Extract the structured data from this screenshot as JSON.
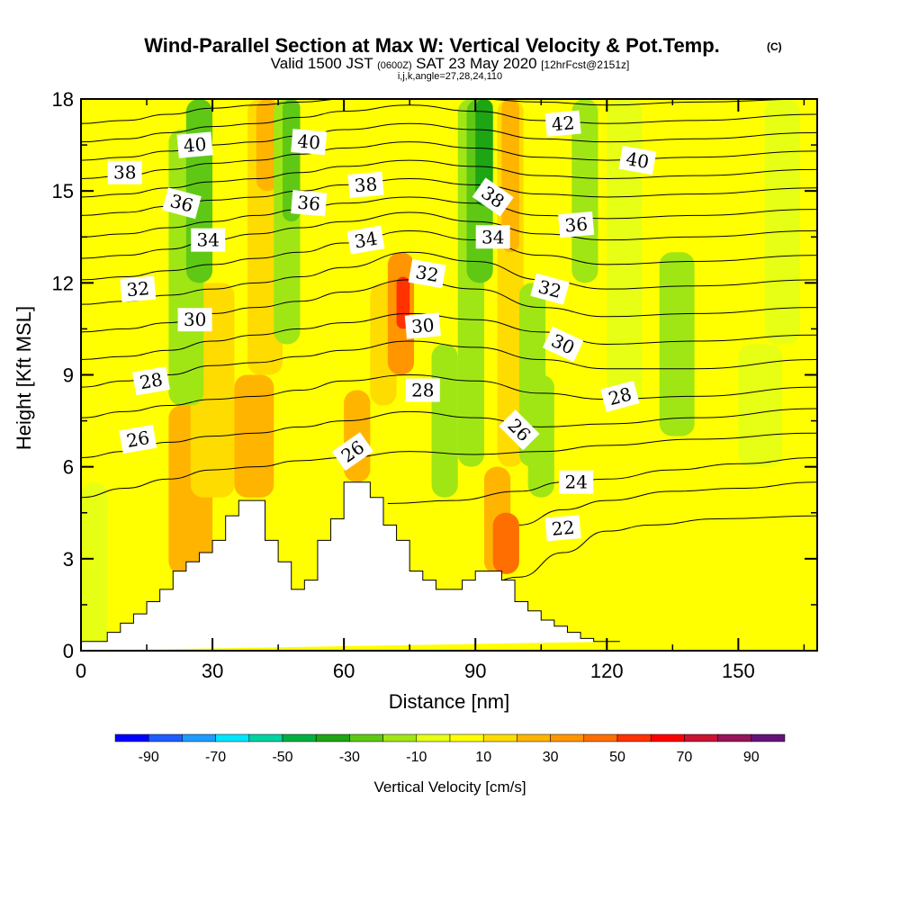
{
  "chart_data": {
    "type": "heatmap",
    "title": "Wind-Parallel Section at Max W: Vertical Velocity & Pot.Temp.",
    "title_mark": "(C)",
    "subtitle_parts": [
      "Valid 1500 JST",
      "(0600Z)",
      "SAT 23 May 2020",
      "[12hrFcst@2151z]"
    ],
    "subtitle2": "i,j,k,angle=27,28,24,110",
    "xlabel": "Distance [nm]",
    "ylabel": "Height [Kft MSL]",
    "xlim": [
      0,
      168
    ],
    "ylim": [
      0,
      18
    ],
    "x_ticks": [
      0,
      30,
      60,
      90,
      120,
      150
    ],
    "y_ticks": [
      0,
      3,
      6,
      9,
      12,
      15,
      18
    ],
    "colorbar": {
      "label": "Vertical Velocity [cm/s]",
      "tick_labels": [
        "-90",
        "-70",
        "-50",
        "-30",
        "-10",
        "10",
        "30",
        "50",
        "70",
        "90"
      ],
      "colors": [
        "#0000ff",
        "#1e5cff",
        "#1e9bff",
        "#00e6ff",
        "#00d2a0",
        "#00b040",
        "#1ea514",
        "#5fc814",
        "#a0e614",
        "#e6ff14",
        "#ffff00",
        "#ffdc00",
        "#ffb400",
        "#ff9600",
        "#ff6e00",
        "#ff3200",
        "#ff0000",
        "#c81432",
        "#96145a",
        "#641478"
      ]
    },
    "terrain": {
      "x": [
        0,
        6,
        6,
        9,
        9,
        12,
        12,
        15,
        15,
        18,
        18,
        21,
        21,
        24,
        24,
        27,
        27,
        30,
        30,
        33,
        33,
        36,
        36,
        42,
        42,
        45,
        45,
        48,
        48,
        51,
        51,
        54,
        54,
        57,
        57,
        60,
        60,
        66,
        66,
        69,
        69,
        72,
        72,
        75,
        75,
        78,
        78,
        81,
        81,
        87,
        87,
        90,
        90,
        96,
        96,
        99,
        99,
        102,
        102,
        105,
        105,
        108,
        108,
        111,
        111,
        114,
        114,
        117,
        117,
        120,
        120,
        123,
        123,
        168
      ],
      "y": [
        0.3,
        0.3,
        0.6,
        0.6,
        0.9,
        0.9,
        1.2,
        1.2,
        1.6,
        1.6,
        2.0,
        2.0,
        2.6,
        2.6,
        2.9,
        2.9,
        3.2,
        3.2,
        3.6,
        3.6,
        4.4,
        4.4,
        4.9,
        4.9,
        3.6,
        3.6,
        2.9,
        2.9,
        2.0,
        2.0,
        2.3,
        2.3,
        3.6,
        3.6,
        4.3,
        4.3,
        5.5,
        5.5,
        5.0,
        5.0,
        4.1,
        4.1,
        3.6,
        3.6,
        2.6,
        2.6,
        2.3,
        2.3,
        2.0,
        2.0,
        2.3,
        2.3,
        2.6,
        2.6,
        2.3,
        2.3,
        1.6,
        1.6,
        1.3,
        1.3,
        1.0,
        1.0,
        0.8,
        0.8,
        0.6,
        0.6,
        0.4,
        0.4,
        0.3,
        0.3,
        0.3,
        0.3
      ]
    },
    "velocity_field": {
      "background": 2,
      "cells": [
        {
          "x": [
            0,
            6
          ],
          "y": [
            0,
            5.5
          ],
          "v": -5
        },
        {
          "x": [
            20,
            30
          ],
          "y": [
            2.5,
            8
          ],
          "v": 25
        },
        {
          "x": [
            25,
            35
          ],
          "y": [
            5,
            12
          ],
          "v": 15
        },
        {
          "x": [
            20,
            28
          ],
          "y": [
            8,
            17
          ],
          "v": -20
        },
        {
          "x": [
            24,
            30
          ],
          "y": [
            12,
            18
          ],
          "v": -25
        },
        {
          "x": [
            35,
            44
          ],
          "y": [
            5,
            9
          ],
          "v": 20
        },
        {
          "x": [
            38,
            46
          ],
          "y": [
            9,
            18
          ],
          "v": 15
        },
        {
          "x": [
            40,
            45
          ],
          "y": [
            15,
            18
          ],
          "v": 25
        },
        {
          "x": [
            44,
            50
          ],
          "y": [
            10,
            18
          ],
          "v": -15
        },
        {
          "x": [
            46,
            50
          ],
          "y": [
            14,
            18
          ],
          "v": -25
        },
        {
          "x": [
            60,
            66
          ],
          "y": [
            5.5,
            8.5
          ],
          "v": 20
        },
        {
          "x": [
            66,
            72
          ],
          "y": [
            8,
            12
          ],
          "v": 15
        },
        {
          "x": [
            70,
            76
          ],
          "y": [
            9,
            13
          ],
          "v": 35
        },
        {
          "x": [
            72,
            75
          ],
          "y": [
            10.5,
            12.2
          ],
          "v": 55
        },
        {
          "x": [
            80,
            86
          ],
          "y": [
            5,
            10
          ],
          "v": -15
        },
        {
          "x": [
            86,
            92
          ],
          "y": [
            6,
            18
          ],
          "v": -15
        },
        {
          "x": [
            88,
            94
          ],
          "y": [
            12,
            18
          ],
          "v": -25
        },
        {
          "x": [
            90,
            94
          ],
          "y": [
            14.5,
            18
          ],
          "v": -40
        },
        {
          "x": [
            92,
            98
          ],
          "y": [
            2.5,
            6
          ],
          "v": 25
        },
        {
          "x": [
            94,
            100
          ],
          "y": [
            2.5,
            4.5
          ],
          "v": 40
        },
        {
          "x": [
            95,
            101
          ],
          "y": [
            6,
            18
          ],
          "v": 15
        },
        {
          "x": [
            96,
            100
          ],
          "y": [
            13,
            18
          ],
          "v": 25
        },
        {
          "x": [
            100,
            106
          ],
          "y": [
            6,
            12
          ],
          "v": -15
        },
        {
          "x": [
            102,
            108
          ],
          "y": [
            5,
            9
          ],
          "v": -20
        },
        {
          "x": [
            112,
            118
          ],
          "y": [
            12,
            18
          ],
          "v": -15
        },
        {
          "x": [
            120,
            128
          ],
          "y": [
            8,
            18
          ],
          "v": -8
        },
        {
          "x": [
            132,
            140
          ],
          "y": [
            7,
            13
          ],
          "v": -12
        },
        {
          "x": [
            140,
            152
          ],
          "y": [
            0.3,
            4
          ],
          "v": 8
        },
        {
          "x": [
            150,
            160
          ],
          "y": [
            6,
            10
          ],
          "v": -10
        },
        {
          "x": [
            156,
            164
          ],
          "y": [
            10,
            18
          ],
          "v": -8
        }
      ]
    },
    "contours": [
      {
        "level": 22,
        "x": [
          90,
          100,
          110,
          120,
          130,
          145,
          168
        ],
        "y": [
          2.0,
          2.4,
          3.2,
          3.9,
          4.1,
          4.3,
          4.4
        ]
      },
      {
        "level": 23,
        "x": [
          100,
          110,
          120,
          135,
          150,
          168
        ],
        "y": [
          4.1,
          4.6,
          4.9,
          5.2,
          5.3,
          5.5
        ]
      },
      {
        "level": 24,
        "x": [
          70,
          85,
          100,
          110,
          120,
          135,
          150,
          168
        ],
        "y": [
          4.8,
          4.9,
          5.2,
          5.5,
          5.6,
          5.9,
          6.1,
          6.3
        ]
      },
      {
        "level": 25,
        "x": [
          0,
          10,
          20,
          30,
          40,
          50,
          60,
          75,
          90,
          105,
          120,
          140,
          168
        ],
        "y": [
          5.0,
          5.3,
          5.6,
          5.9,
          6.0,
          6.2,
          6.3,
          6.5,
          6.4,
          6.5,
          6.7,
          6.9,
          7.1
        ]
      },
      {
        "level": 26,
        "x": [
          0,
          10,
          20,
          30,
          40,
          50,
          60,
          75,
          90,
          105,
          120,
          140,
          168
        ],
        "y": [
          6.3,
          6.5,
          6.8,
          7.0,
          7.1,
          7.3,
          7.5,
          7.8,
          7.6,
          7.3,
          7.4,
          7.6,
          7.9
        ]
      },
      {
        "level": 27,
        "x": [
          0,
          10,
          20,
          30,
          40,
          50,
          60,
          75,
          90,
          105,
          120,
          140,
          168
        ],
        "y": [
          7.6,
          7.8,
          8.0,
          8.2,
          8.3,
          8.5,
          8.8,
          9.0,
          8.8,
          8.4,
          8.2,
          8.3,
          8.6
        ]
      },
      {
        "level": 28,
        "x": [
          0,
          10,
          20,
          30,
          40,
          50,
          60,
          75,
          90,
          105,
          120,
          140,
          168
        ],
        "y": [
          8.6,
          8.8,
          9.0,
          9.3,
          9.4,
          9.6,
          9.8,
          10.1,
          9.9,
          9.5,
          9.2,
          9.2,
          9.5
        ]
      },
      {
        "level": 29,
        "x": [
          0,
          10,
          20,
          30,
          40,
          50,
          60,
          75,
          90,
          105,
          120,
          140,
          168
        ],
        "y": [
          9.5,
          9.6,
          9.8,
          10.1,
          10.3,
          10.5,
          10.7,
          11.0,
          10.8,
          10.4,
          10.0,
          10.1,
          10.3
        ]
      },
      {
        "level": 30,
        "x": [
          0,
          10,
          20,
          30,
          40,
          50,
          60,
          75,
          90,
          105,
          120,
          140,
          168
        ],
        "y": [
          10.4,
          10.5,
          10.7,
          11.0,
          11.2,
          11.4,
          11.7,
          12.1,
          11.8,
          11.2,
          10.9,
          11.0,
          11.2
        ]
      },
      {
        "level": 31,
        "x": [
          0,
          10,
          20,
          30,
          40,
          50,
          60,
          75,
          90,
          105,
          120,
          140,
          168
        ],
        "y": [
          11.3,
          11.4,
          11.6,
          11.8,
          12.0,
          12.2,
          12.5,
          13.0,
          12.7,
          12.1,
          11.8,
          11.9,
          12.1
        ]
      },
      {
        "level": 32,
        "x": [
          0,
          10,
          20,
          30,
          40,
          50,
          60,
          75,
          90,
          105,
          120,
          140,
          168
        ],
        "y": [
          12.1,
          12.2,
          12.4,
          12.6,
          12.8,
          13.0,
          13.3,
          13.7,
          13.4,
          12.9,
          12.6,
          12.7,
          12.9
        ]
      },
      {
        "level": 33,
        "x": [
          0,
          10,
          20,
          30,
          40,
          50,
          60,
          75,
          90,
          105,
          120,
          140,
          168
        ],
        "y": [
          12.8,
          12.9,
          13.1,
          13.4,
          13.6,
          13.8,
          14.0,
          14.3,
          14.0,
          13.6,
          13.4,
          13.5,
          13.7
        ]
      },
      {
        "level": 34,
        "x": [
          0,
          10,
          20,
          30,
          40,
          50,
          60,
          75,
          90,
          105,
          120,
          140,
          168
        ],
        "y": [
          13.5,
          13.6,
          13.8,
          14.0,
          14.2,
          14.4,
          14.6,
          14.8,
          14.6,
          14.2,
          14.1,
          14.2,
          14.4
        ]
      },
      {
        "level": 35,
        "x": [
          0,
          10,
          20,
          30,
          40,
          50,
          60,
          75,
          90,
          105,
          120,
          140,
          168
        ],
        "y": [
          14.2,
          14.3,
          14.5,
          14.7,
          14.8,
          15.0,
          15.2,
          15.4,
          15.2,
          14.9,
          14.8,
          14.9,
          15.1
        ]
      },
      {
        "level": 36,
        "x": [
          0,
          10,
          20,
          30,
          40,
          50,
          60,
          75,
          90,
          105,
          120,
          140,
          168
        ],
        "y": [
          14.8,
          14.9,
          15.1,
          15.3,
          15.4,
          15.6,
          15.8,
          16.0,
          15.8,
          15.5,
          15.4,
          15.5,
          15.7
        ]
      },
      {
        "level": 37,
        "x": [
          0,
          10,
          20,
          30,
          40,
          50,
          60,
          75,
          90,
          105,
          120,
          140,
          168
        ],
        "y": [
          15.4,
          15.5,
          15.7,
          15.9,
          16.0,
          16.2,
          16.4,
          16.6,
          16.4,
          16.1,
          16.0,
          16.1,
          16.3
        ]
      },
      {
        "level": 38,
        "x": [
          0,
          10,
          20,
          30,
          40,
          50,
          60,
          75,
          90,
          105,
          120,
          140,
          168
        ],
        "y": [
          16.0,
          16.1,
          16.3,
          16.5,
          16.6,
          16.8,
          17.0,
          17.2,
          17.0,
          16.7,
          16.6,
          16.7,
          16.9
        ]
      },
      {
        "level": 39,
        "x": [
          0,
          10,
          20,
          30,
          40,
          50,
          60,
          75,
          90,
          105,
          120,
          140,
          168
        ],
        "y": [
          16.6,
          16.7,
          16.9,
          17.1,
          17.2,
          17.4,
          17.6,
          17.8,
          17.6,
          17.3,
          17.2,
          17.3,
          17.5
        ]
      },
      {
        "level": 40,
        "x": [
          0,
          10,
          20,
          30,
          40,
          50,
          60,
          75,
          90,
          105,
          120,
          140,
          168
        ],
        "y": [
          17.2,
          17.3,
          17.5,
          17.7,
          17.8,
          17.9,
          18.0,
          18.0,
          18.0,
          17.9,
          17.8,
          17.9,
          18.0
        ]
      }
    ],
    "contour_labels": [
      {
        "text": "40",
        "x": 26,
        "y": 16.5,
        "angle": -5
      },
      {
        "text": "40",
        "x": 52,
        "y": 16.6,
        "angle": 5
      },
      {
        "text": "42",
        "x": 110,
        "y": 17.2,
        "angle": -5
      },
      {
        "text": "40",
        "x": 127,
        "y": 16.0,
        "angle": 10
      },
      {
        "text": "38",
        "x": 10,
        "y": 15.6,
        "angle": 0
      },
      {
        "text": "38",
        "x": 65,
        "y": 15.2,
        "angle": -5
      },
      {
        "text": "38",
        "x": 94,
        "y": 14.8,
        "angle": 35
      },
      {
        "text": "36",
        "x": 23,
        "y": 14.6,
        "angle": 15
      },
      {
        "text": "36",
        "x": 52,
        "y": 14.6,
        "angle": 5
      },
      {
        "text": "36",
        "x": 113,
        "y": 13.9,
        "angle": -5
      },
      {
        "text": "34",
        "x": 29,
        "y": 13.4,
        "angle": 0
      },
      {
        "text": "34",
        "x": 65,
        "y": 13.4,
        "angle": -10
      },
      {
        "text": "34",
        "x": 94,
        "y": 13.5,
        "angle": 0
      },
      {
        "text": "32",
        "x": 79,
        "y": 12.3,
        "angle": 10
      },
      {
        "text": "32",
        "x": 13,
        "y": 11.8,
        "angle": -5
      },
      {
        "text": "32",
        "x": 107,
        "y": 11.8,
        "angle": 15
      },
      {
        "text": "30",
        "x": 26,
        "y": 10.8,
        "angle": 0
      },
      {
        "text": "30",
        "x": 78,
        "y": 10.6,
        "angle": -5
      },
      {
        "text": "30",
        "x": 110,
        "y": 10.0,
        "angle": 25
      },
      {
        "text": "28",
        "x": 16,
        "y": 8.8,
        "angle": -10
      },
      {
        "text": "28",
        "x": 78,
        "y": 8.5,
        "angle": 0
      },
      {
        "text": "28",
        "x": 123,
        "y": 8.3,
        "angle": -15
      },
      {
        "text": "26",
        "x": 13,
        "y": 6.9,
        "angle": -10
      },
      {
        "text": "26",
        "x": 62,
        "y": 6.5,
        "angle": -35
      },
      {
        "text": "26",
        "x": 100,
        "y": 7.2,
        "angle": 45
      },
      {
        "text": "24",
        "x": 113,
        "y": 5.5,
        "angle": 0
      },
      {
        "text": "22",
        "x": 110,
        "y": 4.0,
        "angle": -5
      }
    ]
  }
}
